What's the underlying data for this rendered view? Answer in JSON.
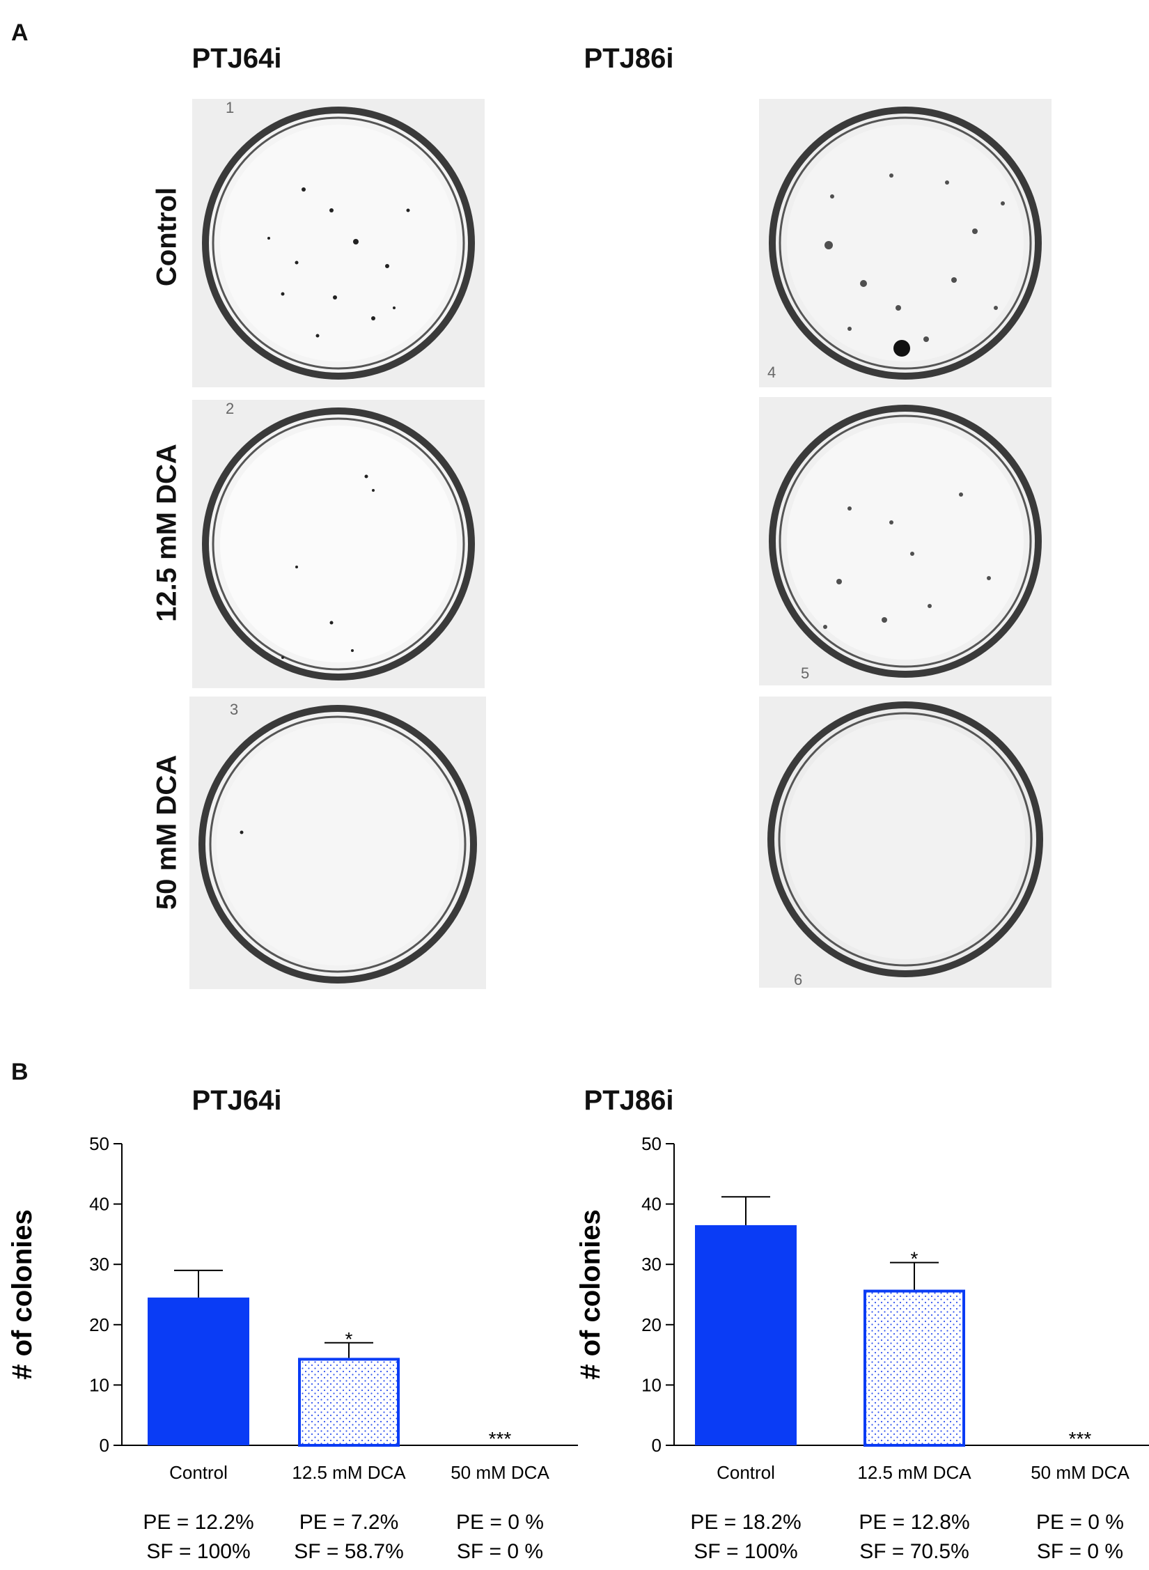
{
  "panel_a": {
    "letter": "A",
    "columns": [
      "PTJ64i",
      "PTJ86i"
    ],
    "rows": [
      "Control",
      "12.5 mM DCA",
      "50 mM DCA"
    ],
    "plate_numbers": [
      "1",
      "2",
      "3",
      "4",
      "5",
      "6"
    ]
  },
  "panel_b": {
    "letter": "B"
  },
  "chart_data": [
    {
      "type": "bar",
      "title": "PTJ64i",
      "ylabel": "# of colonies",
      "xlabel": "",
      "ylim": [
        0,
        50
      ],
      "yticks": [
        0,
        10,
        20,
        30,
        40,
        50
      ],
      "categories": [
        "Control",
        "12.5 mM DCA",
        "50 mM DCA"
      ],
      "values": [
        24.5,
        14.5,
        0
      ],
      "errors": [
        4.5,
        2.5,
        0
      ],
      "significance": [
        "",
        "*",
        "***"
      ],
      "pe": [
        "PE = 12.2%",
        "PE = 7.2%",
        "PE = 0 %"
      ],
      "sf": [
        "SF = 100%",
        "SF = 58.7%",
        "SF = 0 %"
      ],
      "bar_styles": [
        "solid",
        "dotted",
        "none"
      ],
      "colors": {
        "bar": "#0a3cf5",
        "dot": "#3355ee"
      }
    },
    {
      "type": "bar",
      "title": "PTJ86i",
      "ylabel": "# of colonies",
      "xlabel": "",
      "ylim": [
        0,
        50
      ],
      "yticks": [
        0,
        10,
        20,
        30,
        40,
        50
      ],
      "categories": [
        "Control",
        "12.5 mM DCA",
        "50 mM DCA"
      ],
      "values": [
        36.5,
        25.8,
        0
      ],
      "errors": [
        4.7,
        4.5,
        0
      ],
      "significance": [
        "",
        "*",
        "***"
      ],
      "pe": [
        "PE = 18.2%",
        "PE = 12.8%",
        "PE = 0 %"
      ],
      "sf": [
        "SF = 100%",
        "SF = 70.5%",
        "SF = 0 %"
      ],
      "bar_styles": [
        "solid",
        "dotted",
        "none"
      ],
      "colors": {
        "bar": "#0a3cf5",
        "dot": "#3355ee"
      }
    }
  ]
}
